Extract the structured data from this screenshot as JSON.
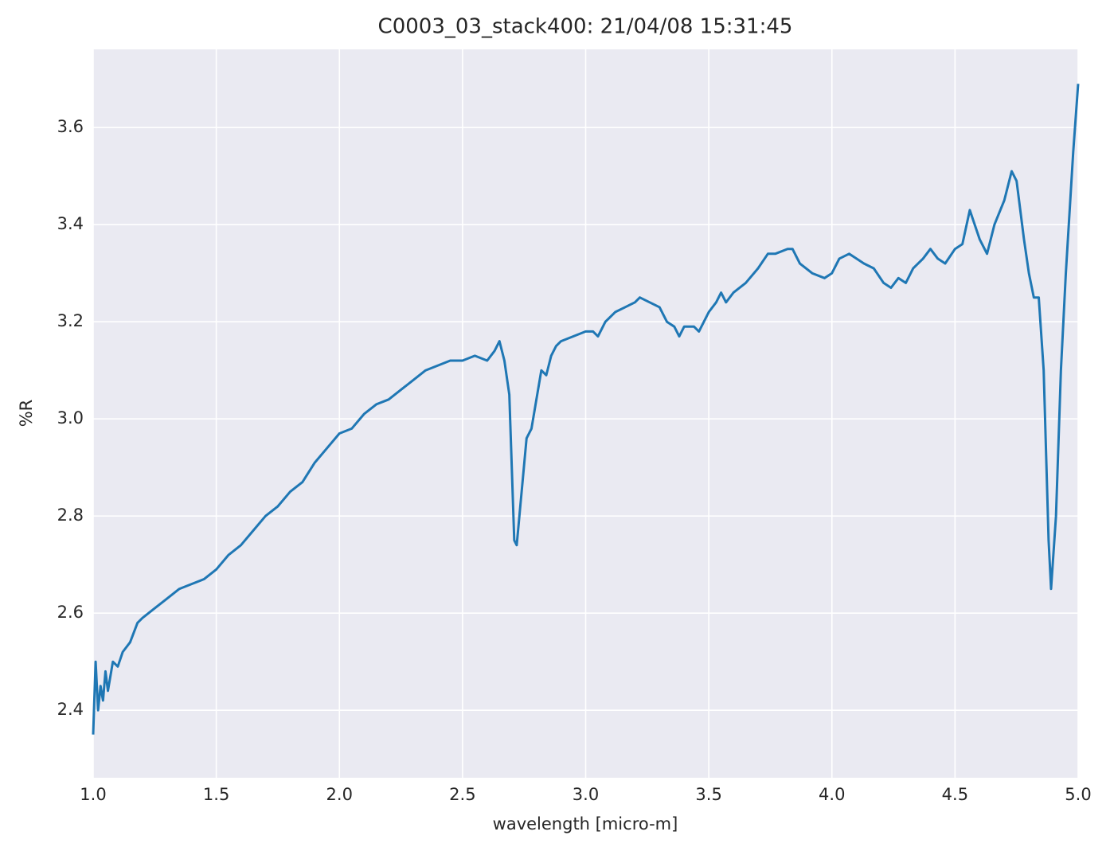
{
  "chart_data": {
    "type": "line",
    "title": "C0003_03_stack400:  21/04/08 15:31:45",
    "x_label": "wavelength [micro-m]",
    "y_label": "%R",
    "x": [
      1.0,
      1.01,
      1.02,
      1.03,
      1.04,
      1.05,
      1.06,
      1.08,
      1.1,
      1.12,
      1.15,
      1.18,
      1.2,
      1.25,
      1.3,
      1.35,
      1.4,
      1.45,
      1.5,
      1.55,
      1.6,
      1.65,
      1.7,
      1.75,
      1.8,
      1.85,
      1.9,
      1.95,
      2.0,
      2.05,
      2.1,
      2.15,
      2.2,
      2.25,
      2.3,
      2.35,
      2.4,
      2.45,
      2.5,
      2.55,
      2.6,
      2.63,
      2.65,
      2.67,
      2.69,
      2.7,
      2.71,
      2.72,
      2.74,
      2.76,
      2.78,
      2.8,
      2.82,
      2.84,
      2.86,
      2.88,
      2.9,
      2.95,
      3.0,
      3.03,
      3.05,
      3.08,
      3.12,
      3.16,
      3.2,
      3.22,
      3.26,
      3.3,
      3.33,
      3.36,
      3.38,
      3.4,
      3.44,
      3.46,
      3.5,
      3.53,
      3.55,
      3.57,
      3.6,
      3.65,
      3.7,
      3.74,
      3.77,
      3.82,
      3.84,
      3.87,
      3.92,
      3.97,
      4.0,
      4.03,
      4.07,
      4.1,
      4.13,
      4.17,
      4.21,
      4.24,
      4.27,
      4.3,
      4.33,
      4.37,
      4.4,
      4.43,
      4.46,
      4.5,
      4.53,
      4.56,
      4.58,
      4.6,
      4.63,
      4.66,
      4.7,
      4.73,
      4.75,
      4.78,
      4.8,
      4.82,
      4.84,
      4.86,
      4.88,
      4.89,
      4.91,
      4.93,
      4.95,
      4.98,
      5.0
    ],
    "series": [
      {
        "name": "%R",
        "color": "#1f77b4",
        "values": [
          2.35,
          2.5,
          2.4,
          2.45,
          2.42,
          2.48,
          2.44,
          2.5,
          2.49,
          2.52,
          2.54,
          2.58,
          2.59,
          2.61,
          2.63,
          2.65,
          2.66,
          2.67,
          2.69,
          2.72,
          2.74,
          2.77,
          2.8,
          2.82,
          2.85,
          2.87,
          2.91,
          2.94,
          2.97,
          2.98,
          3.01,
          3.03,
          3.04,
          3.06,
          3.08,
          3.1,
          3.11,
          3.12,
          3.12,
          3.13,
          3.12,
          3.14,
          3.16,
          3.12,
          3.05,
          2.9,
          2.75,
          2.74,
          2.85,
          2.96,
          2.98,
          3.04,
          3.1,
          3.09,
          3.13,
          3.15,
          3.16,
          3.17,
          3.18,
          3.18,
          3.17,
          3.2,
          3.22,
          3.23,
          3.24,
          3.25,
          3.24,
          3.23,
          3.2,
          3.19,
          3.17,
          3.19,
          3.19,
          3.18,
          3.22,
          3.24,
          3.26,
          3.24,
          3.26,
          3.28,
          3.31,
          3.34,
          3.34,
          3.35,
          3.35,
          3.32,
          3.3,
          3.29,
          3.3,
          3.33,
          3.34,
          3.33,
          3.32,
          3.31,
          3.28,
          3.27,
          3.29,
          3.28,
          3.31,
          3.33,
          3.35,
          3.33,
          3.32,
          3.35,
          3.36,
          3.43,
          3.4,
          3.37,
          3.34,
          3.4,
          3.45,
          3.51,
          3.49,
          3.37,
          3.3,
          3.25,
          3.25,
          3.1,
          2.75,
          2.65,
          2.8,
          3.1,
          3.3,
          3.55,
          3.69
        ]
      }
    ],
    "xlim": [
      1.0,
      5.0
    ],
    "xticks": [
      {
        "value": 1,
        "label": "1.0"
      },
      1.5,
      {
        "value": 2,
        "label": "2.0"
      },
      2.5,
      {
        "value": 3,
        "label": "3.0"
      },
      3.5,
      {
        "value": 4,
        "label": "4.0"
      },
      4.5,
      {
        "value": 5,
        "label": "5.0"
      }
    ],
    "ylim": [
      2.261,
      3.761
    ],
    "yticks": [
      2.4,
      2.6,
      2.8,
      {
        "value": 3,
        "label": "3.0"
      },
      3.2,
      3.4,
      3.6
    ],
    "grid": true,
    "background": "#eaeaf2"
  }
}
